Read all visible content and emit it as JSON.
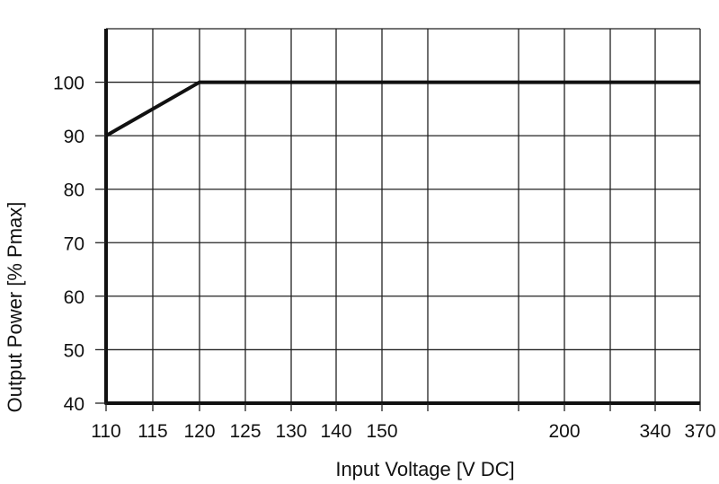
{
  "chart_data": {
    "type": "line",
    "title": "",
    "xlabel": "Input Voltage [V DC]",
    "ylabel": "Output Power [% Pmax]",
    "x_tick_labels": [
      "110",
      "115",
      "120",
      "125",
      "130",
      "140",
      "150",
      "",
      "",
      "200",
      "",
      "340",
      "370"
    ],
    "y_ticks": [
      40,
      50,
      60,
      70,
      80,
      90,
      100
    ],
    "ylim": [
      40,
      110
    ],
    "grid": true,
    "series": [
      {
        "x": [
          "110",
          "120",
          "370"
        ],
        "values": [
          90,
          100,
          100
        ]
      }
    ],
    "colors": {
      "line": "#111111",
      "grid": "#222222"
    }
  }
}
